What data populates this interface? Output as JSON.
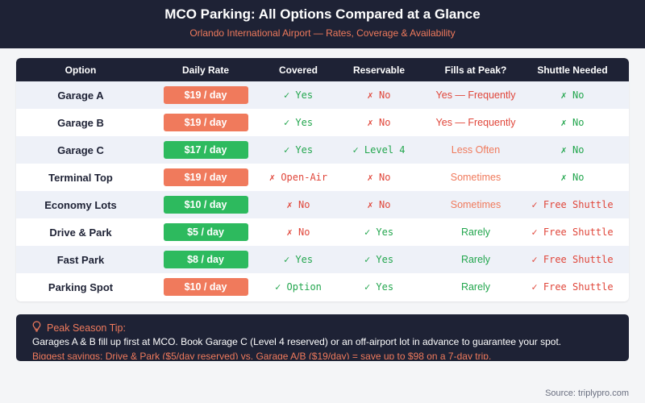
{
  "header": {
    "title": "MCO Parking: All Options Compared at a Glance",
    "subtitle": "Orlando International Airport — Rates, Coverage & Availability"
  },
  "table": {
    "columns": [
      "Option",
      "Daily Rate",
      "Covered",
      "Reservable",
      "Fills at Peak?",
      "Shuttle Needed"
    ],
    "rows": [
      {
        "option": "Garage A",
        "rate": "$19 / day",
        "rate_level": "high",
        "covered": "✓ Yes",
        "covered_ok": true,
        "reservable": "✗ No",
        "reservable_ok": false,
        "fills": "Yes — Frequently",
        "fills_color": "red",
        "shuttle": "✗ No",
        "shuttle_ok": true
      },
      {
        "option": "Garage B",
        "rate": "$19 / day",
        "rate_level": "high",
        "covered": "✓ Yes",
        "covered_ok": true,
        "reservable": "✗ No",
        "reservable_ok": false,
        "fills": "Yes — Frequently",
        "fills_color": "red",
        "shuttle": "✗ No",
        "shuttle_ok": true
      },
      {
        "option": "Garage C",
        "rate": "$17 / day",
        "rate_level": "low",
        "covered": "✓ Yes",
        "covered_ok": true,
        "reservable": "✓ Level 4",
        "reservable_ok": true,
        "fills": "Less Often",
        "fills_color": "orange",
        "shuttle": "✗ No",
        "shuttle_ok": true
      },
      {
        "option": "Terminal Top",
        "rate": "$19 / day",
        "rate_level": "high",
        "covered": "✗ Open-Air",
        "covered_ok": false,
        "reservable": "✗ No",
        "reservable_ok": false,
        "fills": "Sometimes",
        "fills_color": "orange",
        "shuttle": "✗ No",
        "shuttle_ok": true
      },
      {
        "option": "Economy Lots",
        "rate": "$10 / day",
        "rate_level": "low",
        "covered": "✗ No",
        "covered_ok": false,
        "reservable": "✗ No",
        "reservable_ok": false,
        "fills": "Sometimes",
        "fills_color": "orange",
        "shuttle": "✓ Free Shuttle",
        "shuttle_ok": false
      },
      {
        "option": "Drive & Park",
        "rate": "$5 / day",
        "rate_level": "low",
        "covered": "✗ No",
        "covered_ok": false,
        "reservable": "✓ Yes",
        "reservable_ok": true,
        "fills": "Rarely",
        "fills_color": "green",
        "shuttle": "✓ Free Shuttle",
        "shuttle_ok": false
      },
      {
        "option": "Fast Park",
        "rate": "$8 / day",
        "rate_level": "low",
        "covered": "✓ Yes",
        "covered_ok": true,
        "reservable": "✓ Yes",
        "reservable_ok": true,
        "fills": "Rarely",
        "fills_color": "green",
        "shuttle": "✓ Free Shuttle",
        "shuttle_ok": false
      },
      {
        "option": "Parking Spot",
        "rate": "$10 / day",
        "rate_level": "high",
        "covered": "✓ Option",
        "covered_ok": true,
        "reservable": "✓ Yes",
        "reservable_ok": true,
        "fills": "Rarely",
        "fills_color": "green",
        "shuttle": "✓ Free Shuttle",
        "shuttle_ok": false
      }
    ]
  },
  "tip": {
    "icon": "lightbulb-icon",
    "heading": "Peak Season Tip:",
    "line1": "Garages A & B fill up first at MCO. Book Garage C (Level 4 reserved) or an off-airport lot in advance to guarantee your spot.",
    "line2": "Biggest savings: Drive & Park ($5/day reserved) vs. Garage A/B ($19/day) = save up to $98 on a 7-day trip."
  },
  "source": "Source: triplypro.com",
  "colors": {
    "navy": "#1e2235",
    "accent": "#f07a5c",
    "green": "#2dba5e",
    "red": "#e0463a"
  }
}
